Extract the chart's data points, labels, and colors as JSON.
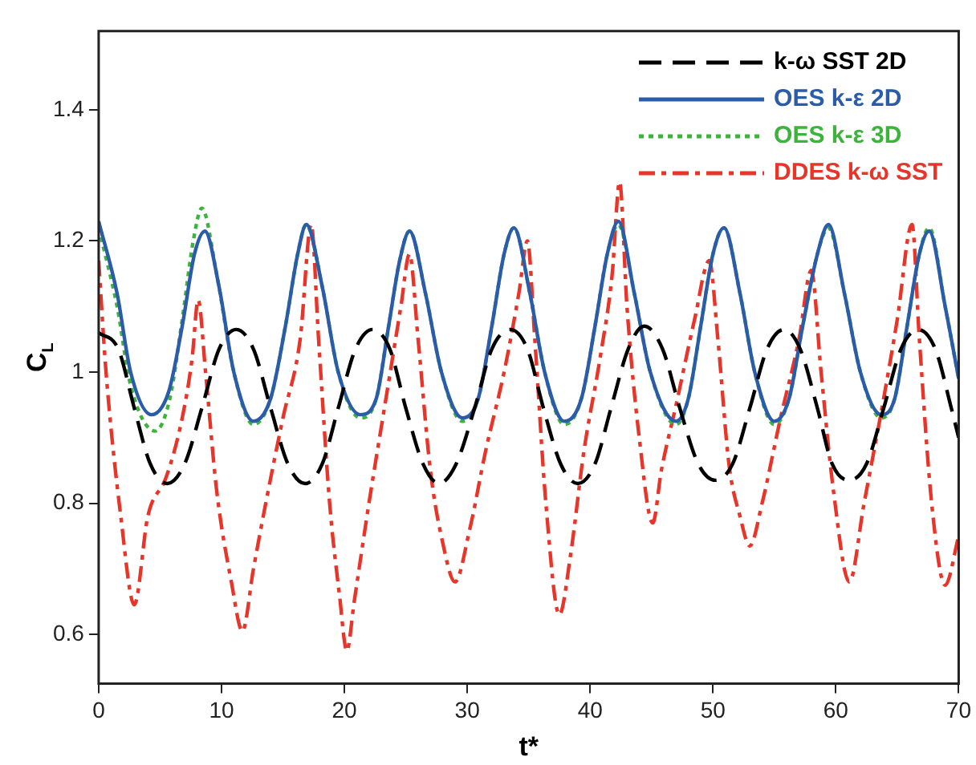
{
  "chart_data": {
    "type": "line",
    "xlabel": "t*",
    "ylabel": "C$_{L}$",
    "xlim": [
      0,
      70
    ],
    "xticks": [
      0,
      10,
      20,
      30,
      40,
      50,
      60,
      70
    ],
    "ylim": [
      0.525,
      1.52
    ],
    "yticks": [
      0.6,
      0.8,
      1,
      1.2,
      1.4
    ],
    "grid": false,
    "legend": "top right",
    "marker": "none",
    "series": [
      {
        "name": "k-ω SST 2D",
        "color": "#000000",
        "line_style": "dashed",
        "x": [
          0,
          1.6,
          2.9,
          4.2,
          5.6,
          7.0,
          8.4,
          9.8,
          11.2,
          12.6,
          14.0,
          15.4,
          16.8,
          18.2,
          19.5,
          20.9,
          22.3,
          23.7,
          25.0,
          26.4,
          27.7,
          29.1,
          30.6,
          32.0,
          33.5,
          34.9,
          36.2,
          37.6,
          39.0,
          40.4,
          41.7,
          43.1,
          44.4,
          45.9,
          47.3,
          48.8,
          50.2,
          51.6,
          53.0,
          54.4,
          55.8,
          57.1,
          58.5,
          59.7,
          61.1,
          62.5,
          63.9,
          65.3,
          66.7,
          68.1,
          69.4,
          70
        ],
        "values": [
          1.06,
          1.035,
          0.945,
          0.86,
          0.83,
          0.86,
          0.945,
          1.035,
          1.065,
          1.035,
          0.945,
          0.86,
          0.83,
          0.86,
          0.945,
          1.035,
          1.065,
          1.035,
          0.945,
          0.86,
          0.83,
          0.86,
          0.945,
          1.035,
          1.065,
          1.035,
          0.945,
          0.86,
          0.83,
          0.86,
          0.945,
          1.035,
          1.07,
          1.035,
          0.945,
          0.86,
          0.835,
          0.86,
          0.945,
          1.035,
          1.065,
          1.035,
          0.945,
          0.86,
          0.835,
          0.86,
          0.945,
          1.035,
          1.065,
          1.035,
          0.945,
          0.9
        ]
      },
      {
        "name": "OES k-ε 2D",
        "color": "#2a5caa",
        "line_style": "solid",
        "x": [
          0,
          1.5,
          2.6,
          4.3,
          5.7,
          6.8,
          7.8,
          8.65,
          9.8,
          11.0,
          12.6,
          14.0,
          15.2,
          16.2,
          16.9,
          18.2,
          19.5,
          21.3,
          22.6,
          23.6,
          24.5,
          25.3,
          26.6,
          27.9,
          29.6,
          30.9,
          32.0,
          33.0,
          33.8,
          35.1,
          36.3,
          37.9,
          39.3,
          40.4,
          41.4,
          42.3,
          43.6,
          44.9,
          47.0,
          48.0,
          49.0,
          50.0,
          50.9,
          52.2,
          53.4,
          55.0,
          56.2,
          57.3,
          58.5,
          59.4,
          60.7,
          62.0,
          63.7,
          64.8,
          65.8,
          66.8,
          67.6,
          68.9,
          70
        ],
        "values": [
          1.23,
          1.12,
          1.0,
          0.935,
          0.97,
          1.07,
          1.18,
          1.215,
          1.13,
          1.0,
          0.925,
          0.96,
          1.07,
          1.18,
          1.225,
          1.13,
          1.0,
          0.935,
          0.96,
          1.07,
          1.17,
          1.215,
          1.12,
          1.0,
          0.93,
          0.96,
          1.07,
          1.18,
          1.22,
          1.12,
          1.0,
          0.925,
          0.96,
          1.07,
          1.18,
          1.23,
          1.12,
          1.0,
          0.925,
          0.96,
          1.07,
          1.18,
          1.22,
          1.12,
          1.0,
          0.925,
          0.96,
          1.07,
          1.18,
          1.225,
          1.12,
          1.0,
          0.935,
          0.96,
          1.07,
          1.18,
          1.215,
          1.1,
          0.99
        ]
      },
      {
        "name": "OES k-ε 3D",
        "color": "#3cb43c",
        "line_style": "dotted",
        "x": [
          0,
          1.5,
          2.6,
          4.6,
          5.8,
          6.8,
          7.7,
          8.4,
          9.6,
          11.0,
          12.6,
          14.0,
          15.2,
          16.2,
          16.9,
          18.2,
          19.5,
          21.3,
          22.6,
          23.6,
          24.5,
          25.3,
          26.6,
          27.9,
          29.6,
          30.9,
          32.0,
          33.0,
          33.8,
          35.1,
          36.3,
          37.9,
          39.3,
          40.4,
          41.4,
          42.3,
          43.6,
          44.9,
          47.0,
          48.0,
          49.0,
          50.0,
          50.9,
          52.2,
          53.4,
          55.0,
          56.2,
          57.3,
          58.5,
          59.4,
          60.7,
          62.0,
          63.7,
          64.8,
          65.8,
          66.8,
          67.6,
          68.9,
          70
        ],
        "values": [
          1.22,
          1.1,
          0.98,
          0.91,
          0.96,
          1.08,
          1.2,
          1.25,
          1.15,
          1.0,
          0.92,
          0.96,
          1.07,
          1.18,
          1.225,
          1.13,
          1.0,
          0.93,
          0.96,
          1.07,
          1.17,
          1.215,
          1.12,
          1.0,
          0.925,
          0.96,
          1.07,
          1.18,
          1.22,
          1.12,
          1.0,
          0.92,
          0.96,
          1.07,
          1.18,
          1.225,
          1.12,
          1.0,
          0.92,
          0.96,
          1.07,
          1.18,
          1.22,
          1.12,
          1.0,
          0.92,
          0.96,
          1.07,
          1.18,
          1.22,
          1.12,
          1.0,
          0.93,
          0.96,
          1.07,
          1.18,
          1.22,
          1.1,
          0.99
        ]
      },
      {
        "name": "DDES k-ω SST",
        "color": "#e8352a",
        "line_style": "dashdot",
        "x": [
          0,
          0.6,
          1.8,
          2.9,
          4.0,
          5.5,
          6.8,
          7.6,
          8.1,
          8.7,
          9.6,
          10.8,
          11.7,
          12.6,
          13.6,
          15.0,
          16.4,
          17.3,
          17.9,
          18.8,
          19.6,
          20.2,
          20.8,
          22.0,
          23.3,
          24.6,
          25.3,
          26.0,
          27.0,
          28.0,
          29.0,
          30.2,
          31.5,
          33.0,
          34.2,
          34.9,
          35.5,
          36.4,
          37.5,
          38.4,
          39.5,
          40.8,
          41.8,
          42.4,
          43.0,
          44.0,
          45.1,
          45.8,
          47.0,
          48.5,
          49.7,
          50.4,
          51.3,
          52.2,
          53.0,
          54.0,
          55.5,
          57.0,
          58.0,
          58.8,
          59.8,
          61.1,
          62.3,
          63.8,
          65.0,
          66.2,
          66.8,
          67.8,
          68.9,
          70
        ],
        "values": [
          1.17,
          1.0,
          0.78,
          0.645,
          0.78,
          0.84,
          0.93,
          1.02,
          1.11,
          1.0,
          0.82,
          0.68,
          0.605,
          0.7,
          0.8,
          0.93,
          1.05,
          1.225,
          1.05,
          0.8,
          0.66,
          0.575,
          0.65,
          0.8,
          0.95,
          1.1,
          1.18,
          1.05,
          0.85,
          0.74,
          0.68,
          0.76,
          0.88,
          1.0,
          1.12,
          1.2,
          1.05,
          0.8,
          0.63,
          0.72,
          0.88,
          1.02,
          1.15,
          1.29,
          1.1,
          0.9,
          0.77,
          0.85,
          0.95,
          1.08,
          1.17,
          1.05,
          0.86,
          0.78,
          0.735,
          0.8,
          0.93,
          1.05,
          1.155,
          1.0,
          0.82,
          0.68,
          0.8,
          0.95,
          1.08,
          1.225,
          1.05,
          0.8,
          0.675,
          0.75
        ]
      }
    ]
  }
}
